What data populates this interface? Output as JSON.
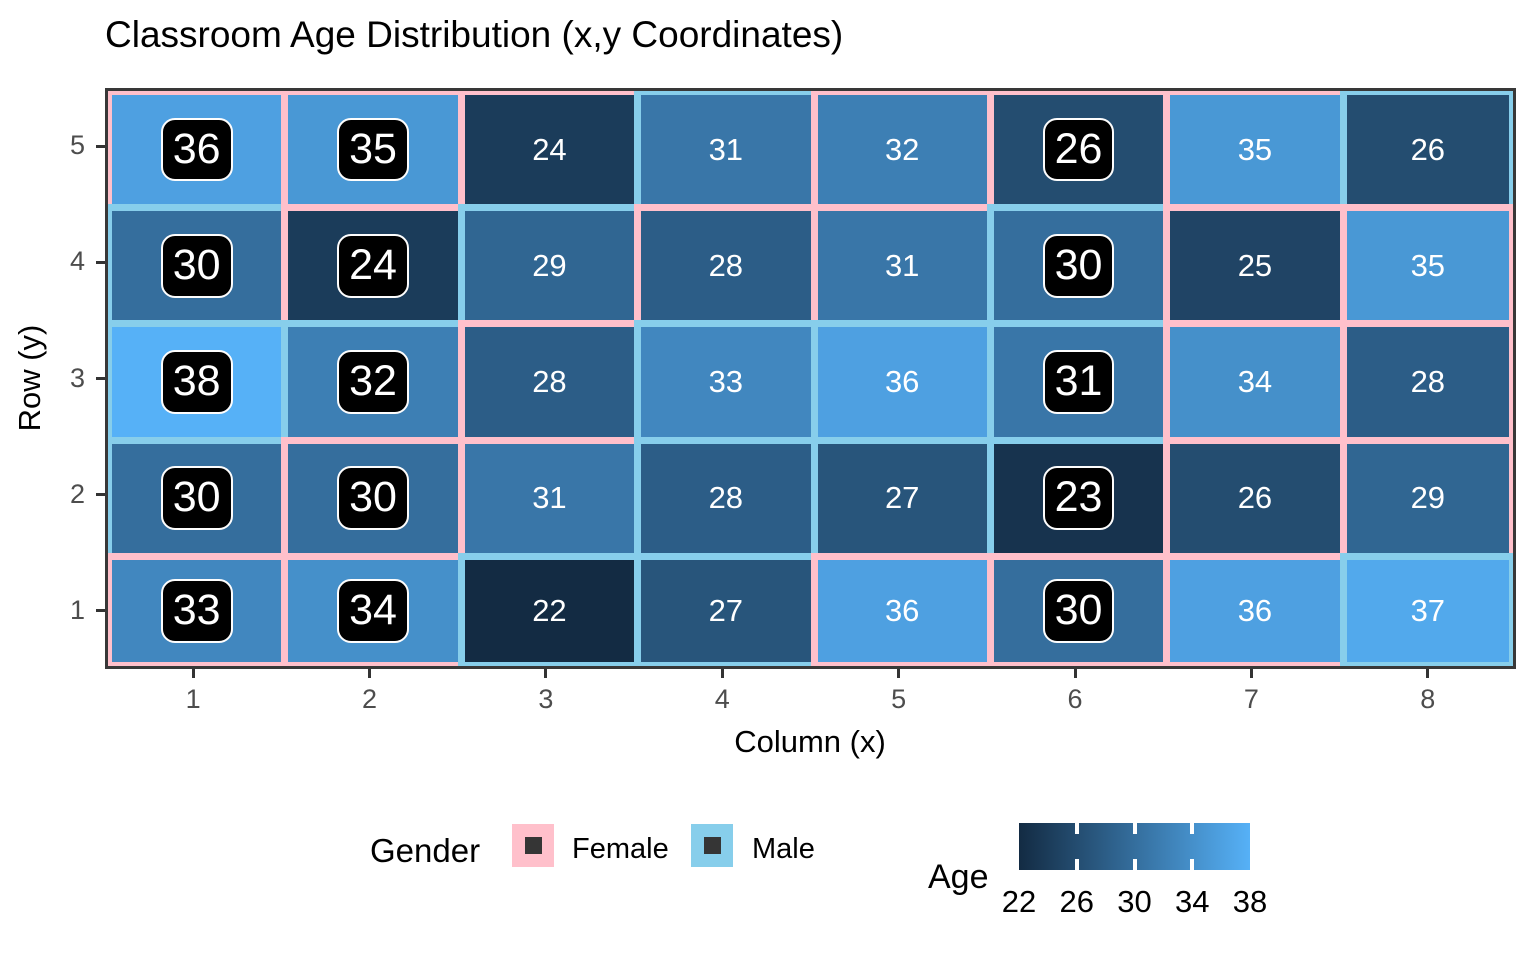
{
  "title": "Classroom Age Distribution (x,y Coordinates)",
  "axes": {
    "x_title": "Column (x)",
    "y_title": "Row (y)",
    "x_ticks": [
      "1",
      "2",
      "3",
      "4",
      "5",
      "6",
      "7",
      "8"
    ],
    "y_ticks": [
      "5",
      "4",
      "3",
      "2",
      "1"
    ]
  },
  "legend": {
    "gender": {
      "title": "Gender",
      "items": [
        {
          "label": "Female",
          "color": "#FFC0CB"
        },
        {
          "label": "Male",
          "color": "#87CEEB"
        }
      ]
    },
    "age": {
      "title": "Age",
      "min": 22,
      "max": 38,
      "tick_labels": [
        "22",
        "26",
        "30",
        "34",
        "38"
      ],
      "low_color": "#132B43",
      "high_color": "#56B1F7"
    }
  },
  "colors": {
    "female_border": "#FFC0CB",
    "male_border": "#87CEEB",
    "age_low": "#132B43",
    "age_high": "#56B1F7",
    "panel_border": "#383838",
    "tick_mark": "#333333",
    "tick_label": "#4D4D4D",
    "cell_text": "#FFFFFF",
    "box_fill": "#000000",
    "box_border": "#FDFDFD",
    "legend_key_inner": "#353535",
    "title_color": "#000000"
  },
  "chart_data": {
    "type": "heatmap",
    "title": "Classroom Age Distribution (x,y Coordinates)",
    "xlabel": "Column (x)",
    "ylabel": "Row (y)",
    "x_domain": [
      1,
      8
    ],
    "y_domain": [
      1,
      5
    ],
    "age_range": [
      22,
      38
    ],
    "legend_position": "bottom",
    "gender_border_colors": {
      "Female": "#FFC0CB",
      "Male": "#87CEEB"
    },
    "boxed_label_columns": [
      1,
      2,
      6
    ],
    "cells": [
      {
        "x": 1,
        "y": 5,
        "age": 36,
        "gender": "Female",
        "boxed": true
      },
      {
        "x": 2,
        "y": 5,
        "age": 35,
        "gender": "Female",
        "boxed": true
      },
      {
        "x": 3,
        "y": 5,
        "age": 24,
        "gender": "Female",
        "boxed": false
      },
      {
        "x": 4,
        "y": 5,
        "age": 31,
        "gender": "Male",
        "boxed": false
      },
      {
        "x": 5,
        "y": 5,
        "age": 32,
        "gender": "Female",
        "boxed": false
      },
      {
        "x": 6,
        "y": 5,
        "age": 26,
        "gender": "Female",
        "boxed": true
      },
      {
        "x": 7,
        "y": 5,
        "age": 35,
        "gender": "Female",
        "boxed": false
      },
      {
        "x": 8,
        "y": 5,
        "age": 26,
        "gender": "Male",
        "boxed": false
      },
      {
        "x": 1,
        "y": 4,
        "age": 30,
        "gender": "Male",
        "boxed": true
      },
      {
        "x": 2,
        "y": 4,
        "age": 24,
        "gender": "Female",
        "boxed": true
      },
      {
        "x": 3,
        "y": 4,
        "age": 29,
        "gender": "Male",
        "boxed": false
      },
      {
        "x": 4,
        "y": 4,
        "age": 28,
        "gender": "Female",
        "boxed": false
      },
      {
        "x": 5,
        "y": 4,
        "age": 31,
        "gender": "Female",
        "boxed": false
      },
      {
        "x": 6,
        "y": 4,
        "age": 30,
        "gender": "Male",
        "boxed": true
      },
      {
        "x": 7,
        "y": 4,
        "age": 25,
        "gender": "Female",
        "boxed": false
      },
      {
        "x": 8,
        "y": 4,
        "age": 35,
        "gender": "Female",
        "boxed": false
      },
      {
        "x": 1,
        "y": 3,
        "age": 38,
        "gender": "Male",
        "boxed": true
      },
      {
        "x": 2,
        "y": 3,
        "age": 32,
        "gender": "Male",
        "boxed": true
      },
      {
        "x": 3,
        "y": 3,
        "age": 28,
        "gender": "Female",
        "boxed": false
      },
      {
        "x": 4,
        "y": 3,
        "age": 33,
        "gender": "Male",
        "boxed": false
      },
      {
        "x": 5,
        "y": 3,
        "age": 36,
        "gender": "Male",
        "boxed": false
      },
      {
        "x": 6,
        "y": 3,
        "age": 31,
        "gender": "Male",
        "boxed": true
      },
      {
        "x": 7,
        "y": 3,
        "age": 34,
        "gender": "Female",
        "boxed": false
      },
      {
        "x": 8,
        "y": 3,
        "age": 28,
        "gender": "Female",
        "boxed": false
      },
      {
        "x": 1,
        "y": 2,
        "age": 30,
        "gender": "Male",
        "boxed": true
      },
      {
        "x": 2,
        "y": 2,
        "age": 30,
        "gender": "Female",
        "boxed": true
      },
      {
        "x": 3,
        "y": 2,
        "age": 31,
        "gender": "Female",
        "boxed": false
      },
      {
        "x": 4,
        "y": 2,
        "age": 28,
        "gender": "Male",
        "boxed": false
      },
      {
        "x": 5,
        "y": 2,
        "age": 27,
        "gender": "Male",
        "boxed": false
      },
      {
        "x": 6,
        "y": 2,
        "age": 23,
        "gender": "Male",
        "boxed": true
      },
      {
        "x": 7,
        "y": 2,
        "age": 26,
        "gender": "Female",
        "boxed": false
      },
      {
        "x": 8,
        "y": 2,
        "age": 29,
        "gender": "Female",
        "boxed": false
      },
      {
        "x": 1,
        "y": 1,
        "age": 33,
        "gender": "Female",
        "boxed": true
      },
      {
        "x": 2,
        "y": 1,
        "age": 34,
        "gender": "Female",
        "boxed": true
      },
      {
        "x": 3,
        "y": 1,
        "age": 22,
        "gender": "Male",
        "boxed": false
      },
      {
        "x": 4,
        "y": 1,
        "age": 27,
        "gender": "Male",
        "boxed": false
      },
      {
        "x": 5,
        "y": 1,
        "age": 36,
        "gender": "Female",
        "boxed": false
      },
      {
        "x": 6,
        "y": 1,
        "age": 30,
        "gender": "Female",
        "boxed": true
      },
      {
        "x": 7,
        "y": 1,
        "age": 36,
        "gender": "Female",
        "boxed": false
      },
      {
        "x": 8,
        "y": 1,
        "age": 37,
        "gender": "Male",
        "boxed": false
      }
    ]
  }
}
